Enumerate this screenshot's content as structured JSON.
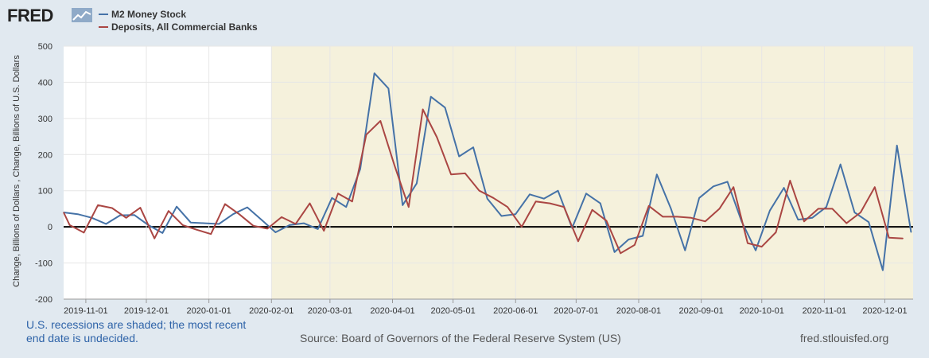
{
  "logo": {
    "text": "FRED"
  },
  "legend": [
    {
      "label": "M2 Money Stock",
      "color": "#4572a7"
    },
    {
      "label": "Deposits, All Commercial Banks",
      "color": "#aa4643"
    }
  ],
  "footer": {
    "note": "U.S. recessions are shaded; the most recent end date is undecided.",
    "source": "Source: Board of Governors of the Federal Reserve System (US)",
    "site": "fred.stlouisfed.org"
  },
  "chart_data": {
    "type": "line",
    "title": "",
    "xlabel": "",
    "ylabel": "Change, Billions of Dollars , Change, Billions of U.S. Dollars",
    "ylim": [
      -200,
      500
    ],
    "yticks": [
      -200,
      -100,
      0,
      100,
      200,
      300,
      400,
      500
    ],
    "x_range": [
      "2019-10-21",
      "2020-12-15"
    ],
    "x_ticks": [
      "2019-11-01",
      "2019-12-01",
      "2020-01-01",
      "2020-02-01",
      "2020-03-01",
      "2020-04-01",
      "2020-05-01",
      "2020-06-01",
      "2020-07-01",
      "2020-08-01",
      "2020-09-01",
      "2020-10-01",
      "2020-11-01",
      "2020-12-01"
    ],
    "recession": {
      "start": "2020-02-01",
      "end": "2020-12-15",
      "color": "#f5f1dc"
    },
    "grid": true,
    "series": [
      {
        "name": "M2 Money Stock",
        "color": "#4572a7",
        "x": [
          "2019-10-21",
          "2019-10-28",
          "2019-11-04",
          "2019-11-11",
          "2019-11-18",
          "2019-11-25",
          "2019-12-02",
          "2019-12-09",
          "2019-12-16",
          "2019-12-23",
          "2019-12-30",
          "2020-01-06",
          "2020-01-13",
          "2020-01-20",
          "2020-01-27",
          "2020-02-03",
          "2020-02-10",
          "2020-02-17",
          "2020-02-24",
          "2020-03-02",
          "2020-03-09",
          "2020-03-16",
          "2020-03-23",
          "2020-03-30",
          "2020-04-06",
          "2020-04-13",
          "2020-04-20",
          "2020-04-27",
          "2020-05-04",
          "2020-05-11",
          "2020-05-18",
          "2020-05-25",
          "2020-06-01",
          "2020-06-08",
          "2020-06-15",
          "2020-06-22",
          "2020-06-29",
          "2020-07-06",
          "2020-07-13",
          "2020-07-20",
          "2020-07-27",
          "2020-08-03",
          "2020-08-10",
          "2020-08-17",
          "2020-08-24",
          "2020-08-31",
          "2020-09-07",
          "2020-09-14",
          "2020-09-21",
          "2020-09-28",
          "2020-10-05",
          "2020-10-12",
          "2020-10-19",
          "2020-10-26",
          "2020-11-02",
          "2020-11-09",
          "2020-11-16",
          "2020-11-23",
          "2020-11-30",
          "2020-12-07",
          "2020-12-14"
        ],
        "values": [
          40,
          35,
          25,
          8,
          32,
          33,
          5,
          -17,
          56,
          12,
          10,
          8,
          35,
          54,
          20,
          -15,
          5,
          10,
          -6,
          80,
          55,
          160,
          425,
          383,
          60,
          120,
          360,
          330,
          195,
          220,
          78,
          30,
          35,
          90,
          78,
          100,
          -3,
          92,
          65,
          -70,
          -35,
          -25,
          145,
          50,
          -65,
          80,
          112,
          125,
          15,
          -65,
          45,
          108,
          20,
          25,
          55,
          173,
          40,
          13,
          -120,
          225,
          -15
        ]
      },
      {
        "name": "Deposits, All Commercial Banks",
        "color": "#aa4643",
        "x": [
          "2019-10-17",
          "2019-10-24",
          "2019-10-31",
          "2019-11-07",
          "2019-11-14",
          "2019-11-21",
          "2019-11-28",
          "2019-12-05",
          "2019-12-12",
          "2019-12-19",
          "2019-12-26",
          "2020-01-02",
          "2020-01-09",
          "2020-01-16",
          "2020-01-23",
          "2020-01-30",
          "2020-02-06",
          "2020-02-13",
          "2020-02-20",
          "2020-02-27",
          "2020-03-05",
          "2020-03-12",
          "2020-03-19",
          "2020-03-26",
          "2020-04-02",
          "2020-04-09",
          "2020-04-16",
          "2020-04-23",
          "2020-04-30",
          "2020-05-07",
          "2020-05-14",
          "2020-05-21",
          "2020-05-28",
          "2020-06-04",
          "2020-06-11",
          "2020-06-18",
          "2020-06-25",
          "2020-07-02",
          "2020-07-09",
          "2020-07-16",
          "2020-07-23",
          "2020-07-30",
          "2020-08-06",
          "2020-08-13",
          "2020-08-20",
          "2020-08-27",
          "2020-09-03",
          "2020-09-10",
          "2020-09-17",
          "2020-09-24",
          "2020-10-01",
          "2020-10-08",
          "2020-10-15",
          "2020-10-22",
          "2020-10-29",
          "2020-11-05",
          "2020-11-12",
          "2020-11-19",
          "2020-11-26",
          "2020-12-03",
          "2020-12-10"
        ],
        "values": [
          40,
          5,
          -16,
          60,
          52,
          25,
          53,
          -32,
          44,
          5,
          -8,
          -20,
          63,
          35,
          3,
          -5,
          27,
          8,
          65,
          -11,
          92,
          70,
          255,
          293,
          170,
          55,
          325,
          248,
          145,
          148,
          100,
          80,
          55,
          0,
          70,
          65,
          55,
          -40,
          47,
          17,
          -73,
          -50,
          58,
          28,
          28,
          25,
          15,
          50,
          110,
          -45,
          -55,
          -15,
          128,
          15,
          50,
          50,
          10,
          40,
          110,
          -30,
          -32
        ]
      }
    ]
  }
}
